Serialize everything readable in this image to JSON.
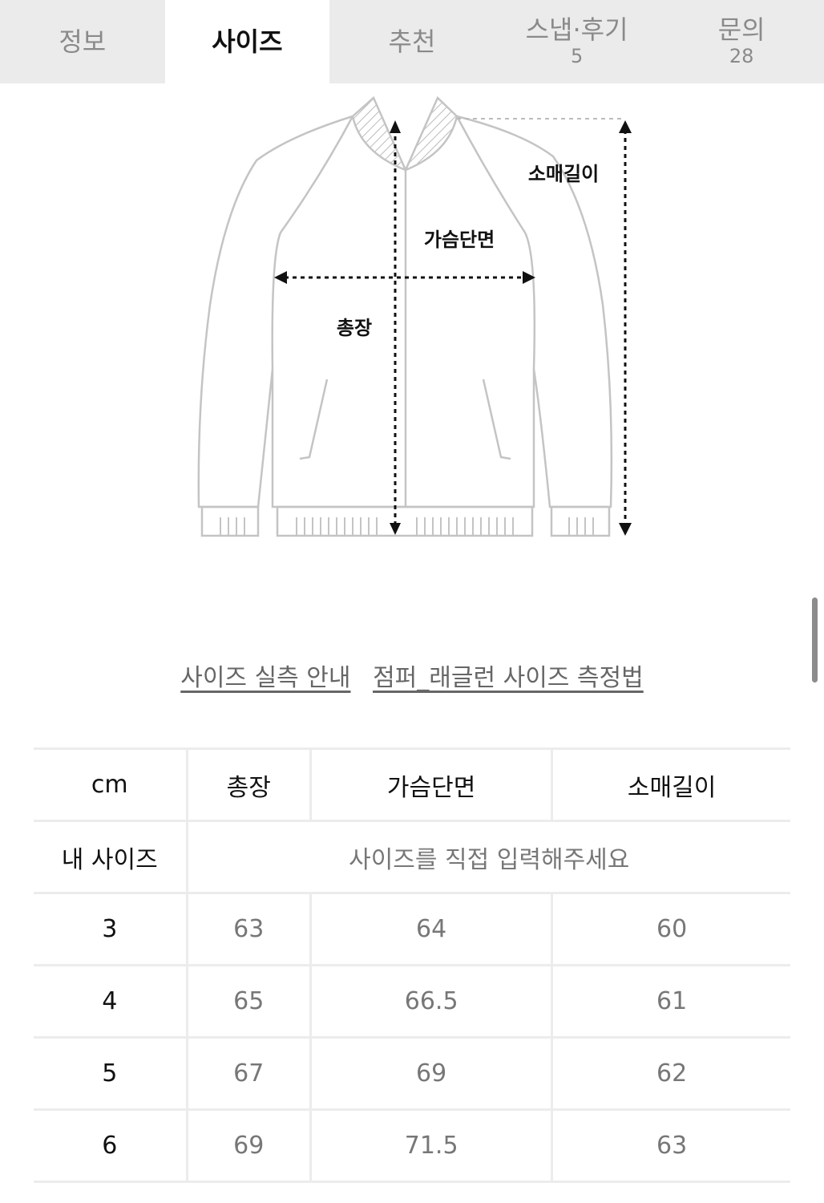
{
  "tabs": [
    {
      "label": "정보",
      "count": null,
      "active": false
    },
    {
      "label": "사이즈",
      "count": null,
      "active": true
    },
    {
      "label": "추천",
      "count": null,
      "active": false
    },
    {
      "label": "스냅·후기",
      "count": "5",
      "active": false
    },
    {
      "label": "문의",
      "count": "28",
      "active": false
    }
  ],
  "diagram": {
    "sleeve": "소매길이",
    "chest": "가슴단면",
    "length": "총장"
  },
  "links": {
    "guide": "사이즈 실측 안내",
    "method": "점퍼_래글런 사이즈 측정법"
  },
  "table": {
    "headers": [
      "cm",
      "총장",
      "가슴단면",
      "소매길이"
    ],
    "my_size_label": "내 사이즈",
    "my_size_prompt": "사이즈를 직접 입력해주세요",
    "rows": [
      [
        "3",
        "63",
        "64",
        "60"
      ],
      [
        "4",
        "65",
        "66.5",
        "61"
      ],
      [
        "5",
        "67",
        "69",
        "62"
      ],
      [
        "6",
        "69",
        "71.5",
        "63"
      ]
    ]
  }
}
